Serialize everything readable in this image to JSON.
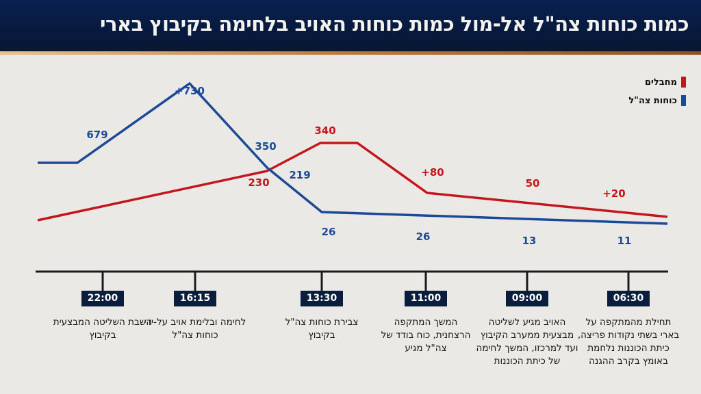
{
  "header": {
    "title": "כמות כוחות צה\"ל אל-מול כמות כוחות האויב בלחימה בקיבוץ בארי"
  },
  "legend": [
    {
      "label": "מחבלים",
      "color": "#c4161c"
    },
    {
      "label": "כוחות צה\"ל",
      "color": "#1d4a97"
    }
  ],
  "chart_data": {
    "type": "line",
    "title": "כמות כוחות צה\"ל אל-מול כמות כוחות האויב בלחימה בקיבוץ בארי",
    "x_order": "right-to-left (time runs from 06:30 on the right to 22:00 on the left)",
    "categories": [
      "22:00",
      "16:15",
      "13:30",
      "11:00",
      "09:00",
      "06:30"
    ],
    "series": [
      {
        "name": "מחבלים",
        "color": "#c4161c",
        "labels": [
          "230",
          "340",
          "+80",
          "50",
          "+20"
        ]
      },
      {
        "name": "כוחות צה\"ל",
        "color": "#1d4a97",
        "labels": [
          "679",
          "+730",
          "350",
          "219",
          "26",
          "26",
          "13",
          "11"
        ]
      }
    ],
    "legend_position": "top-right",
    "grid": false
  },
  "timeline": [
    {
      "time": "22:00",
      "caption": "השבת השליטה המבצעית בקיבוץ"
    },
    {
      "time": "16:15",
      "caption": "לחימה ובלימת אויב על-ידי כוחות צה\"ל"
    },
    {
      "time": "13:30",
      "caption": "צבירת כוחות צה\"ל בקיבוץ"
    },
    {
      "time": "11:00",
      "caption": "המשך המתקפה הרצחנית, כוח בודד של צה\"ל מגיע"
    },
    {
      "time": "09:00",
      "caption": "האויב מגיע לשליטה מבצעית ממערב הקיבוץ ועד למרכזו, המשך לחימה של כיתת הכוננות"
    },
    {
      "time": "06:30",
      "caption": "תחילת מהמתקפה על בארי בשתי נקודות פריצה, כיתת הכוננות נלחמת באומץ בקרב ההגנה"
    }
  ]
}
